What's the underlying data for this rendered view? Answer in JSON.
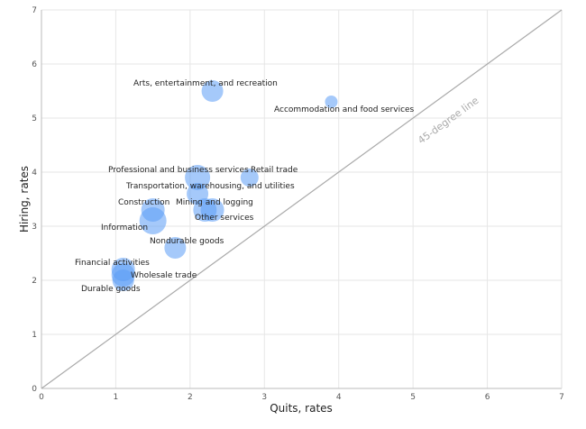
{
  "chart_data": {
    "type": "scatter",
    "title": "",
    "xlabel": "Quits, rates",
    "ylabel": "Hiring, rates",
    "xlim": [
      0,
      7
    ],
    "ylim": [
      0,
      7
    ],
    "xticks": [
      "0",
      "1",
      "2",
      "3",
      "4",
      "5",
      "6",
      "7"
    ],
    "yticks": [
      "0",
      "1",
      "2",
      "3",
      "4",
      "5",
      "6",
      "7"
    ],
    "grid": true,
    "reference_line": {
      "label": "45-degree line",
      "slope": 1,
      "intercept": 0,
      "color": "#aaaaaa"
    },
    "bubble_color": "#5b9cf5",
    "points": [
      {
        "name": "Arts, entertainment, and recreation",
        "x": 2.3,
        "y": 5.5,
        "size": 12
      },
      {
        "name": "Accommodation and food services",
        "x": 3.9,
        "y": 5.3,
        "size": 7
      },
      {
        "name": "Professional and business services",
        "x": 2.1,
        "y": 3.9,
        "size": 14
      },
      {
        "name": "Retail trade",
        "x": 2.8,
        "y": 3.9,
        "size": 10
      },
      {
        "name": "Transportation, warehousing, and utilities",
        "x": 2.1,
        "y": 3.6,
        "size": 12
      },
      {
        "name": "Construction",
        "x": 1.5,
        "y": 3.3,
        "size": 13
      },
      {
        "name": "Mining and logging",
        "x": 2.2,
        "y": 3.3,
        "size": 13
      },
      {
        "name": "Other services",
        "x": 2.3,
        "y": 3.3,
        "size": 13
      },
      {
        "name": "Information",
        "x": 1.5,
        "y": 3.1,
        "size": 15
      },
      {
        "name": "Nondurable goods",
        "x": 1.8,
        "y": 2.6,
        "size": 12
      },
      {
        "name": "Financial activities",
        "x": 1.1,
        "y": 2.2,
        "size": 13
      },
      {
        "name": "Wholesale trade",
        "x": 1.1,
        "y": 2.1,
        "size": 13
      },
      {
        "name": "Durable goods",
        "x": 1.1,
        "y": 2.0,
        "size": 12
      }
    ]
  }
}
